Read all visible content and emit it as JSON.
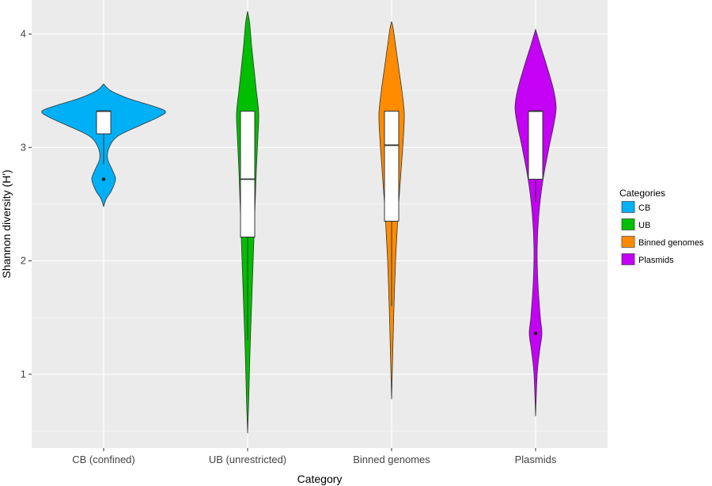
{
  "chart_data": {
    "type": "violin",
    "xlabel": "Category",
    "ylabel": "Shannon diversity (H')",
    "ylim": [
      0.35,
      4.3
    ],
    "yticks": [
      1,
      2,
      3,
      4
    ],
    "grid": true,
    "legend": {
      "title": "Categories",
      "placement": "right",
      "entries": [
        "CB",
        "UB",
        "Binned genomes",
        "Plasmids"
      ]
    },
    "categories": [
      "CB (confined)",
      "UB (unrestricted)",
      "Binned genomes",
      "Plasmids"
    ],
    "series": [
      {
        "name": "CB",
        "color": "#00b0f6",
        "box": {
          "q1": 3.12,
          "median": 3.32,
          "q3": 3.32,
          "whisker_low": 2.85,
          "whisker_high": 3.32,
          "outliers": [
            2.72
          ]
        },
        "violin": [
          [
            2.48,
            0
          ],
          [
            2.55,
            3.5
          ],
          [
            2.62,
            10
          ],
          [
            2.72,
            15
          ],
          [
            2.8,
            11
          ],
          [
            2.9,
            5
          ],
          [
            3.0,
            7
          ],
          [
            3.1,
            18
          ],
          [
            3.2,
            48
          ],
          [
            3.27,
            70
          ],
          [
            3.32,
            78
          ],
          [
            3.37,
            60
          ],
          [
            3.43,
            32
          ],
          [
            3.5,
            9
          ],
          [
            3.56,
            0
          ]
        ]
      },
      {
        "name": "UB",
        "color": "#00be00",
        "box": {
          "q1": 2.21,
          "median": 2.72,
          "q3": 3.32,
          "whisker_low": 1.3,
          "whisker_high": 3.32,
          "outliers": []
        },
        "violin": [
          [
            0.48,
            0
          ],
          [
            0.8,
            1.5
          ],
          [
            1.2,
            3
          ],
          [
            1.6,
            5
          ],
          [
            2.0,
            7
          ],
          [
            2.4,
            9
          ],
          [
            2.8,
            11
          ],
          [
            3.1,
            13
          ],
          [
            3.3,
            14
          ],
          [
            3.5,
            11
          ],
          [
            3.7,
            8
          ],
          [
            3.9,
            5
          ],
          [
            4.1,
            2.5
          ],
          [
            4.2,
            0
          ]
        ]
      },
      {
        "name": "Binned genomes",
        "color": "#ff8c00",
        "box": {
          "q1": 2.35,
          "median": 3.02,
          "q3": 3.32,
          "whisker_low": 1.6,
          "whisker_high": 3.32,
          "outliers": []
        },
        "violin": [
          [
            0.78,
            0
          ],
          [
            1.2,
            1.5
          ],
          [
            1.6,
            3
          ],
          [
            2.0,
            5
          ],
          [
            2.4,
            8
          ],
          [
            2.8,
            12
          ],
          [
            3.1,
            15
          ],
          [
            3.3,
            16
          ],
          [
            3.5,
            13
          ],
          [
            3.7,
            9
          ],
          [
            3.9,
            5
          ],
          [
            4.05,
            2
          ],
          [
            4.11,
            0
          ]
        ]
      },
      {
        "name": "Plasmids",
        "color": "#c400f5",
        "box": {
          "q1": 2.72,
          "median": 3.32,
          "q3": 3.32,
          "whisker_low": 2.52,
          "whisker_high": 3.32,
          "outliers": [
            1.36
          ]
        },
        "violin": [
          [
            0.63,
            0
          ],
          [
            1.0,
            2
          ],
          [
            1.2,
            5
          ],
          [
            1.36,
            8
          ],
          [
            1.5,
            6
          ],
          [
            1.8,
            3
          ],
          [
            2.1,
            2
          ],
          [
            2.4,
            4
          ],
          [
            2.7,
            9
          ],
          [
            3.0,
            17
          ],
          [
            3.2,
            23
          ],
          [
            3.35,
            26
          ],
          [
            3.5,
            23
          ],
          [
            3.7,
            15
          ],
          [
            3.9,
            6
          ],
          [
            4.04,
            0
          ]
        ]
      }
    ]
  }
}
